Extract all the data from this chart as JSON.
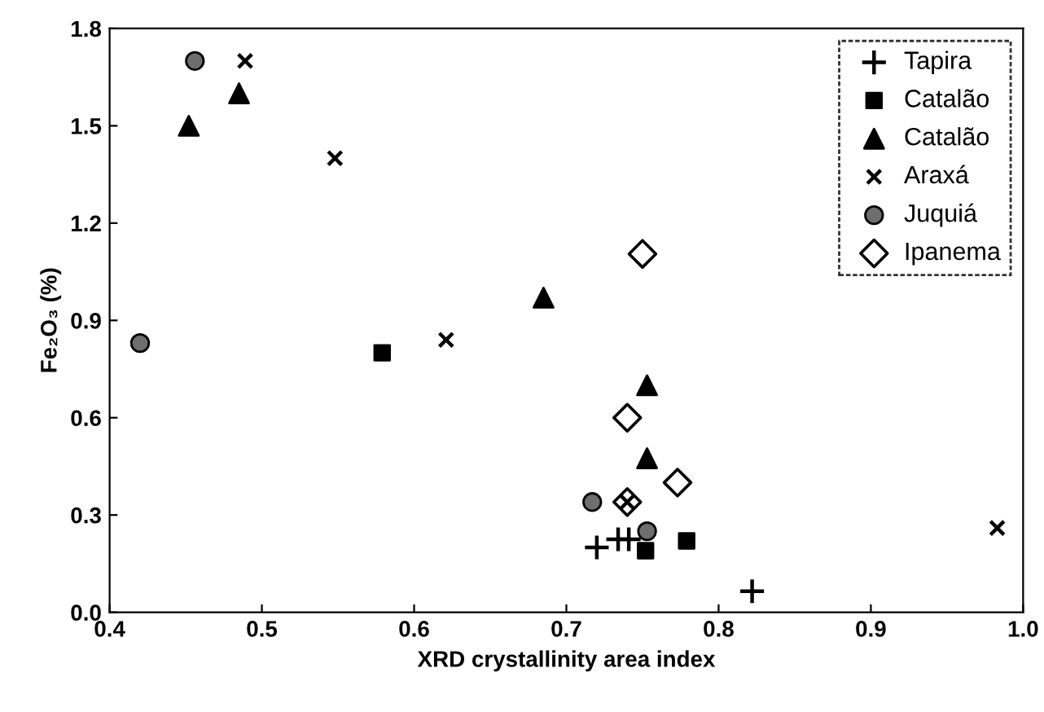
{
  "chart_data": {
    "type": "scatter",
    "xlabel": "XRD crystallinity area index",
    "ylabel": "Fe₂O₃ (%)",
    "xlim": [
      0.4,
      1.0
    ],
    "xticks": [
      0.4,
      0.5,
      0.6,
      0.7,
      0.8,
      0.9,
      {
        "value": 1.0,
        "label": "1.0"
      }
    ],
    "ylim": [
      0.0,
      1.8
    ],
    "yticks": [
      {
        "value": 0.0,
        "label": "0.0"
      },
      0.3,
      0.6,
      0.9,
      1.2,
      1.5,
      1.8
    ],
    "grid": false,
    "legend": "top right",
    "series": [
      {
        "name": "Tapira",
        "color": "#000000",
        "marker": "plus",
        "x": [
          0.72,
          0.734,
          0.741,
          0.822
        ],
        "values": [
          0.2,
          0.225,
          0.225,
          0.065
        ]
      },
      {
        "name": "Catalão",
        "color": "#000000",
        "marker": "square",
        "x": [
          0.579,
          0.752,
          0.779
        ],
        "values": [
          0.8,
          0.19,
          0.22
        ]
      },
      {
        "name": "Catalão",
        "color": "#000000",
        "marker": "triangle",
        "x": [
          0.452,
          0.485,
          0.685,
          0.753,
          0.753
        ],
        "values": [
          1.5,
          1.6,
          0.97,
          0.7,
          0.475
        ]
      },
      {
        "name": "Araxá",
        "color": "#000000",
        "marker": "cross",
        "x": [
          0.489,
          0.548,
          0.621,
          0.74,
          0.983
        ],
        "values": [
          1.7,
          1.4,
          0.84,
          0.34,
          0.26
        ]
      },
      {
        "name": "Juquiá",
        "color": "#6e6e6e",
        "marker": "circle",
        "x": [
          0.42,
          0.456,
          0.717,
          0.753
        ],
        "values": [
          0.83,
          1.7,
          0.34,
          0.25
        ]
      },
      {
        "name": "Ipanema",
        "color": "#000000",
        "marker": "diamond",
        "x": [
          0.74,
          0.75,
          0.773,
          0.74
        ],
        "values": [
          0.6,
          1.105,
          0.4,
          0.34
        ]
      }
    ]
  }
}
